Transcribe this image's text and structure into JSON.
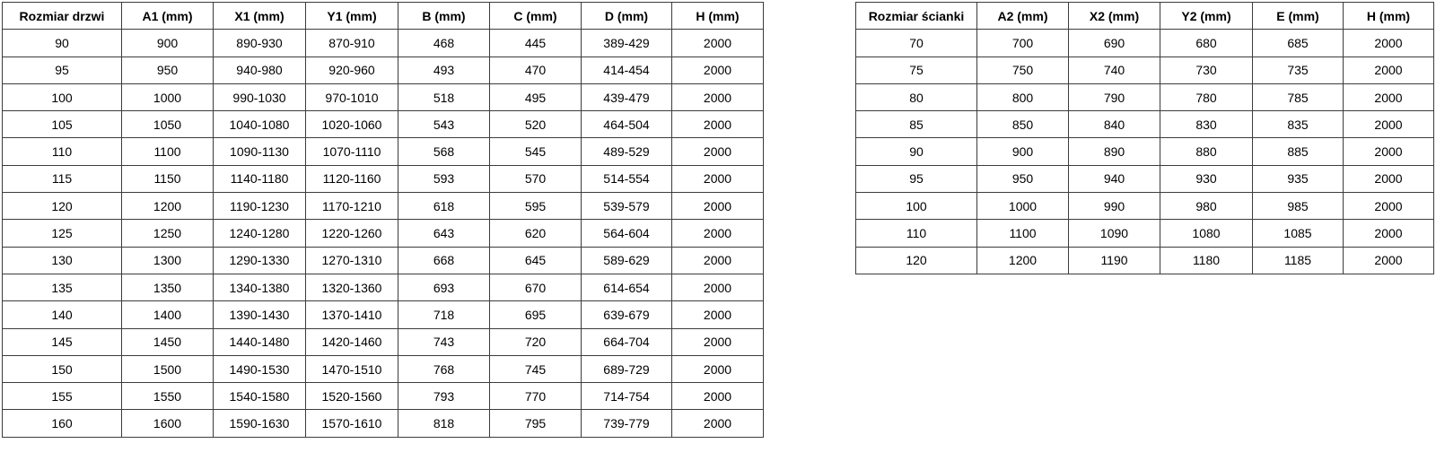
{
  "door_table": {
    "headers": [
      "Rozmiar drzwi",
      "A1 (mm)",
      "X1 (mm)",
      "Y1 (mm)",
      "B (mm)",
      "C (mm)",
      "D (mm)",
      "H (mm)"
    ],
    "rows": [
      [
        "90",
        "900",
        "890-930",
        "870-910",
        "468",
        "445",
        "389-429",
        "2000"
      ],
      [
        "95",
        "950",
        "940-980",
        "920-960",
        "493",
        "470",
        "414-454",
        "2000"
      ],
      [
        "100",
        "1000",
        "990-1030",
        "970-1010",
        "518",
        "495",
        "439-479",
        "2000"
      ],
      [
        "105",
        "1050",
        "1040-1080",
        "1020-1060",
        "543",
        "520",
        "464-504",
        "2000"
      ],
      [
        "110",
        "1100",
        "1090-1130",
        "1070-1110",
        "568",
        "545",
        "489-529",
        "2000"
      ],
      [
        "115",
        "1150",
        "1140-1180",
        "1120-1160",
        "593",
        "570",
        "514-554",
        "2000"
      ],
      [
        "120",
        "1200",
        "1190-1230",
        "1170-1210",
        "618",
        "595",
        "539-579",
        "2000"
      ],
      [
        "125",
        "1250",
        "1240-1280",
        "1220-1260",
        "643",
        "620",
        "564-604",
        "2000"
      ],
      [
        "130",
        "1300",
        "1290-1330",
        "1270-1310",
        "668",
        "645",
        "589-629",
        "2000"
      ],
      [
        "135",
        "1350",
        "1340-1380",
        "1320-1360",
        "693",
        "670",
        "614-654",
        "2000"
      ],
      [
        "140",
        "1400",
        "1390-1430",
        "1370-1410",
        "718",
        "695",
        "639-679",
        "2000"
      ],
      [
        "145",
        "1450",
        "1440-1480",
        "1420-1460",
        "743",
        "720",
        "664-704",
        "2000"
      ],
      [
        "150",
        "1500",
        "1490-1530",
        "1470-1510",
        "768",
        "745",
        "689-729",
        "2000"
      ],
      [
        "155",
        "1550",
        "1540-1580",
        "1520-1560",
        "793",
        "770",
        "714-754",
        "2000"
      ],
      [
        "160",
        "1600",
        "1590-1630",
        "1570-1610",
        "818",
        "795",
        "739-779",
        "2000"
      ]
    ]
  },
  "wall_table": {
    "headers": [
      "Rozmiar ścianki",
      "A2 (mm)",
      "X2 (mm)",
      "Y2 (mm)",
      "E (mm)",
      "H (mm)"
    ],
    "rows": [
      [
        "70",
        "700",
        "690",
        "680",
        "685",
        "2000"
      ],
      [
        "75",
        "750",
        "740",
        "730",
        "735",
        "2000"
      ],
      [
        "80",
        "800",
        "790",
        "780",
        "785",
        "2000"
      ],
      [
        "85",
        "850",
        "840",
        "830",
        "835",
        "2000"
      ],
      [
        "90",
        "900",
        "890",
        "880",
        "885",
        "2000"
      ],
      [
        "95",
        "950",
        "940",
        "930",
        "935",
        "2000"
      ],
      [
        "100",
        "1000",
        "990",
        "980",
        "985",
        "2000"
      ],
      [
        "110",
        "1100",
        "1090",
        "1080",
        "1085",
        "2000"
      ],
      [
        "120",
        "1200",
        "1190",
        "1180",
        "1185",
        "2000"
      ]
    ]
  },
  "colors": {
    "border": "#3c3c3c",
    "text": "#000000",
    "background": "#ffffff"
  }
}
